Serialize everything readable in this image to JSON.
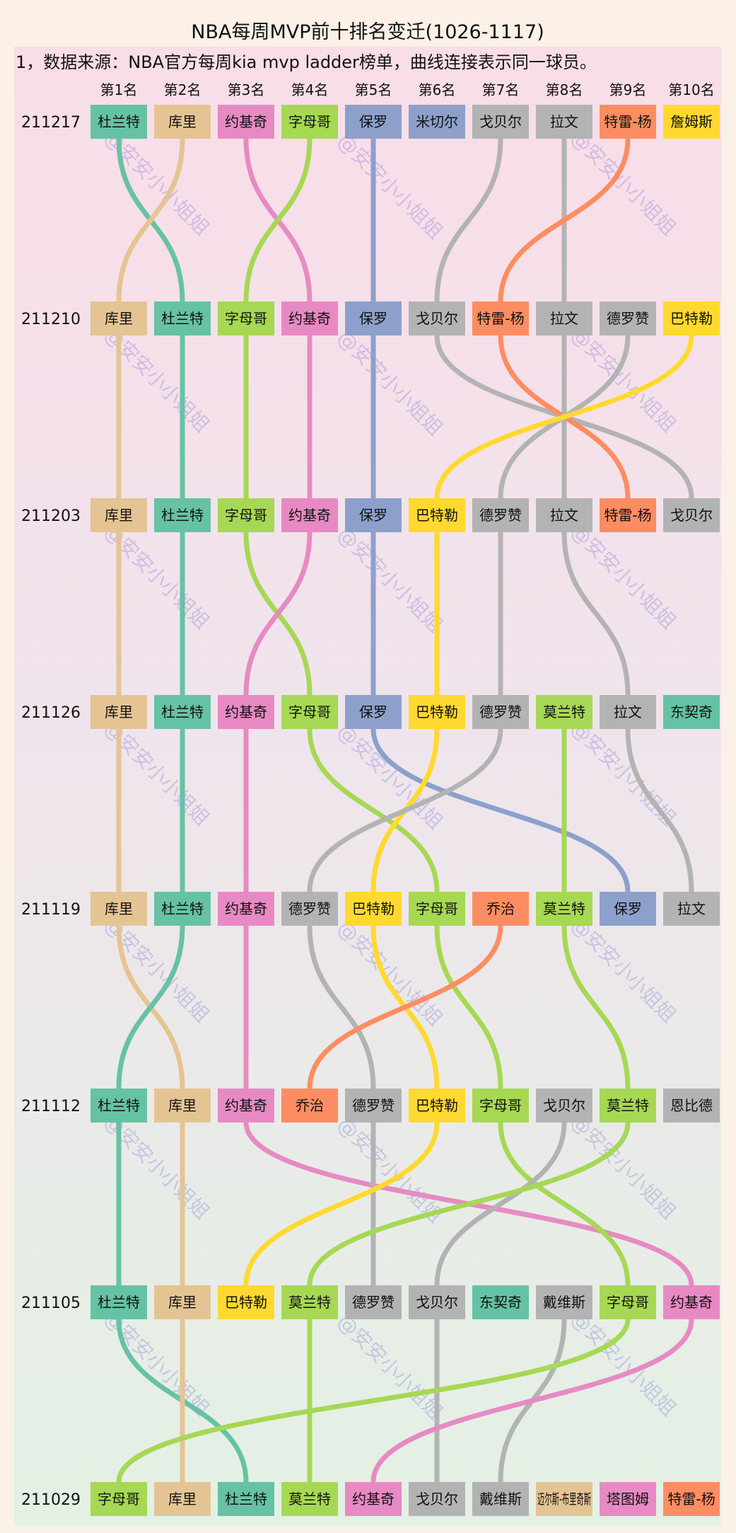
{
  "chart_data": {
    "type": "bump",
    "title": "NBA每周MVP前十排名变迁(1026-1117)",
    "note": "1，数据来源：NBA官方每周kia mvp ladder榜单，曲线连接表示同一球员。",
    "watermark": "@安安小小姐姐",
    "rank_labels": [
      "第1名",
      "第2名",
      "第3名",
      "第4名",
      "第5名",
      "第6名",
      "第7名",
      "第8名",
      "第9名",
      "第10名"
    ],
    "weeks": [
      {
        "label": "211217",
        "players": [
          "杜兰特",
          "库里",
          "约基奇",
          "字母哥",
          "保罗",
          "米切尔",
          "戈贝尔",
          "拉文",
          "特雷-杨",
          "詹姆斯"
        ]
      },
      {
        "label": "211210",
        "players": [
          "库里",
          "杜兰特",
          "字母哥",
          "约基奇",
          "保罗",
          "戈贝尔",
          "特雷-杨",
          "拉文",
          "德罗赞",
          "巴特勒"
        ]
      },
      {
        "label": "211203",
        "players": [
          "库里",
          "杜兰特",
          "字母哥",
          "约基奇",
          "保罗",
          "巴特勒",
          "德罗赞",
          "拉文",
          "特雷-杨",
          "戈贝尔"
        ]
      },
      {
        "label": "211126",
        "players": [
          "库里",
          "杜兰特",
          "约基奇",
          "字母哥",
          "保罗",
          "巴特勒",
          "德罗赞",
          "莫兰特",
          "拉文",
          "东契奇"
        ]
      },
      {
        "label": "211119",
        "players": [
          "库里",
          "杜兰特",
          "约基奇",
          "德罗赞",
          "巴特勒",
          "字母哥",
          "乔治",
          "莫兰特",
          "保罗",
          "拉文"
        ]
      },
      {
        "label": "211112",
        "players": [
          "杜兰特",
          "库里",
          "约基奇",
          "乔治",
          "德罗赞",
          "巴特勒",
          "字母哥",
          "戈贝尔",
          "莫兰特",
          "恩比德"
        ]
      },
      {
        "label": "211105",
        "players": [
          "杜兰特",
          "库里",
          "巴特勒",
          "莫兰特",
          "德罗赞",
          "戈贝尔",
          "东契奇",
          "戴维斯",
          "字母哥",
          "约基奇"
        ]
      },
      {
        "label": "211029",
        "players": [
          "字母哥",
          "库里",
          "杜兰特",
          "莫兰特",
          "约基奇",
          "戈贝尔",
          "戴维斯",
          "迈尔斯-布里奇斯",
          "塔图姆",
          "特雷-杨"
        ]
      }
    ],
    "player_colors": {
      "杜兰特": "#66c2a5",
      "库里": "#e5c494",
      "约基奇": "#e78ac3",
      "字母哥": "#a6d854",
      "保罗": "#8da0cb",
      "米切尔": "#8da0cb",
      "戈贝尔": "#b3b3b3",
      "拉文": "#b3b3b3",
      "特雷-杨": "#fc8d62",
      "詹姆斯": "#ffd92f",
      "巴特勒": "#ffd92f",
      "德罗赞": "#b3b3b3",
      "莫兰特": "#a6d854",
      "东契奇": "#66c2a5",
      "乔治": "#fc8d62",
      "恩比德": "#b3b3b3",
      "戴维斯": "#b3b3b3",
      "迈尔斯-布里奇斯": "#e5c494",
      "塔图姆": "#e78ac3"
    }
  }
}
